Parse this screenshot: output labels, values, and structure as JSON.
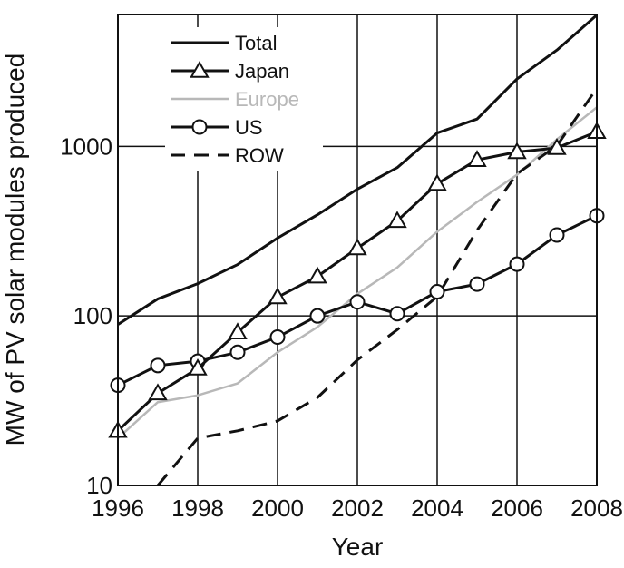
{
  "chart_data": {
    "type": "line",
    "title": "",
    "xlabel": "Year",
    "ylabel": "MW of PV solar modules produced",
    "yscale": "log",
    "xlim": [
      1996,
      2008
    ],
    "ylim": [
      10,
      6000
    ],
    "x_ticks": [
      1996,
      1998,
      2000,
      2002,
      2004,
      2006,
      2008
    ],
    "y_ticks": [
      10,
      100,
      1000
    ],
    "x_tick_labels": [
      "1996",
      "1998",
      "2000",
      "2002",
      "2004",
      "2006",
      "2008"
    ],
    "y_tick_labels": [
      "10",
      "100",
      "1000"
    ],
    "grid": true,
    "legend_position": "top-left",
    "series": [
      {
        "name": "Total",
        "color": "#111111",
        "dash": "solid",
        "marker": "none",
        "x": [
          1996,
          1997,
          1998,
          1999,
          2000,
          2001,
          2002,
          2003,
          2004,
          2005,
          2006,
          2007,
          2008
        ],
        "y": [
          89,
          126,
          155,
          201,
          288,
          395,
          560,
          750,
          1200,
          1450,
          2500,
          3700,
          5950
        ]
      },
      {
        "name": "Japan",
        "color": "#111111",
        "dash": "solid",
        "marker": "triangle",
        "x": [
          1996,
          1997,
          1998,
          1999,
          2000,
          2001,
          2002,
          2003,
          2004,
          2005,
          2006,
          2007,
          2008
        ],
        "y": [
          21,
          35,
          49,
          80,
          129,
          171,
          251,
          364,
          602,
          833,
          927,
          980,
          1220
        ]
      },
      {
        "name": "Europe",
        "color": "#b8b8b8",
        "dash": "solid",
        "marker": "none",
        "x": [
          1996,
          1997,
          1998,
          1999,
          2000,
          2001,
          2002,
          2003,
          2004,
          2005,
          2006,
          2007,
          2008
        ],
        "y": [
          19,
          31,
          34,
          40,
          61,
          86,
          135,
          193,
          314,
          470,
          680,
          1100,
          1700
        ]
      },
      {
        "name": "US",
        "color": "#111111",
        "dash": "solid",
        "marker": "circle",
        "x": [
          1996,
          1997,
          1998,
          1999,
          2000,
          2001,
          2002,
          2003,
          2004,
          2005,
          2006,
          2007,
          2008
        ],
        "y": [
          39,
          51,
          54,
          61,
          75,
          100,
          121,
          103,
          139,
          154,
          202,
          300,
          390
        ]
      },
      {
        "name": "ROW",
        "color": "#111111",
        "dash": "dashed",
        "marker": "none",
        "x": [
          1997,
          1998,
          1999,
          2000,
          2001,
          2002,
          2003,
          2004,
          2005,
          2006,
          2007,
          2008
        ],
        "y": [
          10,
          19,
          21,
          24,
          33,
          55,
          83,
          130,
          320,
          690,
          1010,
          2200
        ]
      }
    ]
  }
}
